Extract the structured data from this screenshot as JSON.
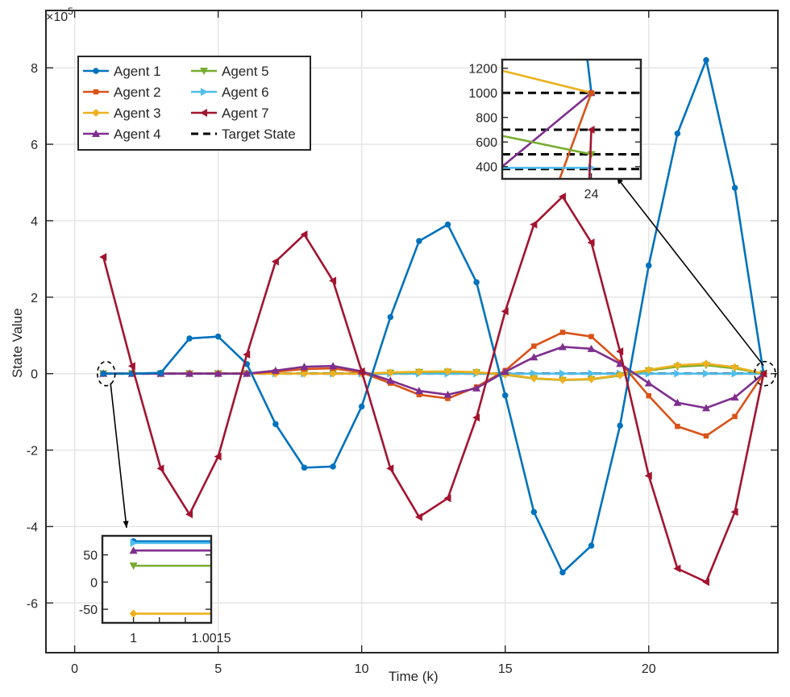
{
  "chart_data": {
    "type": "line",
    "title": "",
    "xlabel": "Time (k)",
    "ylabel": "State Value",
    "y_exponent_label": "×10",
    "y_exponent_power": "5",
    "xlim": [
      -1,
      24.5
    ],
    "ylim": [
      -7.3,
      9.5
    ],
    "xticks": [
      0,
      5,
      10,
      15,
      20
    ],
    "yticks": [
      -6,
      -4,
      -2,
      0,
      2,
      4,
      6,
      8
    ],
    "grid": true,
    "legend_position": "top-left",
    "x": [
      1,
      2,
      3,
      4,
      5,
      6,
      7,
      8,
      9,
      10,
      11,
      12,
      13,
      14,
      15,
      16,
      17,
      18,
      19,
      20,
      21,
      22,
      23,
      24
    ],
    "series": [
      {
        "name": "Agent 1",
        "color": "#0072BD",
        "marker": "circle",
        "values": [
          0,
          0,
          0.02,
          0.92,
          0.97,
          0.25,
          -1.32,
          -2.46,
          -2.43,
          -0.86,
          1.48,
          3.47,
          3.9,
          2.39,
          -0.57,
          -3.62,
          -5.2,
          -4.5,
          -1.36,
          2.83,
          6.28,
          8.2,
          4.86,
          0
        ]
      },
      {
        "name": "Agent 2",
        "color": "#D95319",
        "marker": "square",
        "values": [
          0,
          0,
          0,
          0,
          0,
          0,
          0.05,
          0.12,
          0.14,
          0.03,
          -0.25,
          -0.55,
          -0.65,
          -0.35,
          0.08,
          0.72,
          1.08,
          0.97,
          0.3,
          -0.58,
          -1.38,
          -1.63,
          -1.12,
          0
        ]
      },
      {
        "name": "Agent 3",
        "color": "#EDB120",
        "marker": "diamond",
        "values": [
          0,
          0,
          0,
          0,
          0,
          0,
          0,
          0,
          0,
          0,
          0.03,
          0.05,
          0.06,
          0.04,
          -0.02,
          -0.12,
          -0.16,
          -0.14,
          -0.04,
          0.1,
          0.22,
          0.26,
          0.17,
          0
        ]
      },
      {
        "name": "Agent 4",
        "color": "#7E2F8E",
        "marker": "triangle-up",
        "values": [
          0,
          0,
          0,
          0,
          0,
          0,
          0.08,
          0.18,
          0.2,
          0.06,
          -0.18,
          -0.45,
          -0.55,
          -0.38,
          0.05,
          0.43,
          0.7,
          0.65,
          0.26,
          -0.25,
          -0.76,
          -0.9,
          -0.62,
          0
        ]
      },
      {
        "name": "Agent 5",
        "color": "#77AC30",
        "marker": "triangle-down",
        "values": [
          0,
          0,
          0,
          0,
          0,
          0,
          0,
          0,
          0,
          0,
          0.02,
          0.04,
          0.05,
          0.03,
          -0.03,
          -0.13,
          -0.17,
          -0.15,
          -0.05,
          0.08,
          0.18,
          0.22,
          0.14,
          0
        ]
      },
      {
        "name": "Agent 6",
        "color": "#4DBEEE",
        "marker": "triangle-right",
        "values": [
          0,
          0,
          0,
          0,
          0,
          0,
          0,
          0,
          0,
          0,
          0,
          0,
          0,
          0,
          0,
          0,
          0,
          0,
          0,
          0,
          0,
          0,
          0,
          0
        ]
      },
      {
        "name": "Agent 7",
        "color": "#A2142F",
        "marker": "triangle-left",
        "values": [
          3.05,
          0.2,
          -2.48,
          -3.68,
          -2.17,
          0.5,
          2.93,
          3.64,
          2.43,
          0.06,
          -2.48,
          -3.75,
          -3.26,
          -1.15,
          1.63,
          3.9,
          4.63,
          3.43,
          0.58,
          -2.67,
          -5.1,
          -5.45,
          -3.62,
          0
        ]
      },
      {
        "name": "Target State",
        "color": "#000000",
        "marker": "none",
        "dashed": true,
        "values": [
          0,
          0,
          0,
          0,
          0,
          0,
          0,
          0,
          0,
          0,
          0,
          0,
          0,
          0,
          0,
          0,
          0,
          0,
          0,
          0,
          0,
          0,
          0,
          0
        ]
      }
    ],
    "legend": [
      {
        "label": "Agent 1",
        "series": 0
      },
      {
        "label": "Agent 2",
        "series": 1
      },
      {
        "label": "Agent 3",
        "series": 2
      },
      {
        "label": "Agent 4",
        "series": 3
      },
      {
        "label": "Agent 5",
        "series": 4
      },
      {
        "label": "Agent 6",
        "series": 5
      },
      {
        "label": "Agent 7",
        "series": 6
      },
      {
        "label": "Target State",
        "series": 7
      }
    ],
    "insets": [
      {
        "name": "inset-upper-right",
        "xlim": [
          23.55,
          24.25
        ],
        "ylim": [
          300,
          1270
        ],
        "xticks": [
          24
        ],
        "yticks": [
          400,
          600,
          800,
          1000,
          1200
        ],
        "target_levels": [
          1000,
          700,
          500,
          380
        ],
        "lines": [
          {
            "series": 2,
            "points": [
              [
                23.55,
                1180
              ],
              [
                24,
                1000
              ]
            ]
          },
          {
            "series": 0,
            "points": [
              [
                23.98,
                1270
              ],
              [
                24,
                1000
              ]
            ]
          },
          {
            "series": 3,
            "points": [
              [
                23.55,
                400
              ],
              [
                24,
                1000
              ]
            ]
          },
          {
            "series": 1,
            "points": [
              [
                23.84,
                300
              ],
              [
                24,
                1000
              ]
            ]
          },
          {
            "series": 4,
            "points": [
              [
                23.55,
                650
              ],
              [
                24,
                500
              ]
            ]
          },
          {
            "series": 5,
            "points": [
              [
                23.55,
                390
              ],
              [
                24,
                390
              ]
            ]
          },
          {
            "series": 6,
            "points": [
              [
                23.99,
                300
              ],
              [
                24,
                700
              ]
            ]
          }
        ]
      },
      {
        "name": "inset-lower-left",
        "xlim": [
          0.9994,
          1.0015
        ],
        "ylim": [
          -75,
          85
        ],
        "xticks": [
          1,
          1.0015
        ],
        "xtick_labels": [
          "1",
          "1.0015"
        ],
        "yticks": [
          -50,
          0,
          50
        ],
        "lines": [
          {
            "series": 0,
            "points": [
              [
                1,
                75
              ],
              [
                1.0015,
                75
              ]
            ]
          },
          {
            "series": 5,
            "points": [
              [
                1,
                72
              ],
              [
                1.0015,
                72
              ]
            ]
          },
          {
            "series": 3,
            "points": [
              [
                1,
                58
              ],
              [
                1.0015,
                58
              ]
            ]
          },
          {
            "series": 4,
            "points": [
              [
                1,
                30
              ],
              [
                1.0015,
                30
              ]
            ]
          },
          {
            "series": 2,
            "points": [
              [
                1,
                -58
              ],
              [
                1.0015,
                -58
              ]
            ]
          }
        ]
      }
    ]
  }
}
